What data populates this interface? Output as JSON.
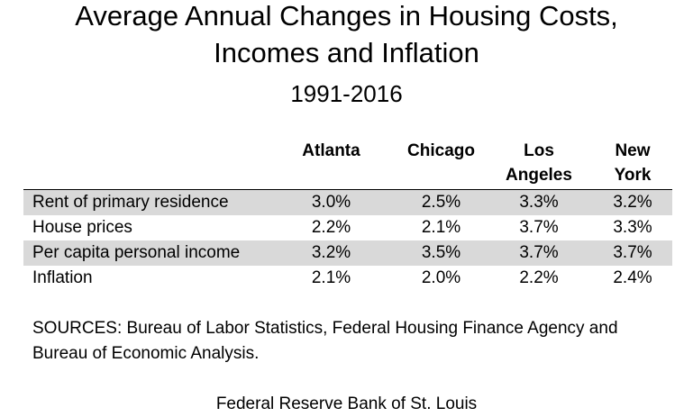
{
  "header": {
    "title_line1": "Average Annual Changes in Housing Costs,",
    "title_line2": "Incomes and Inflation",
    "subtitle": "1991-2016"
  },
  "chart_data": {
    "type": "table",
    "title": "Average Annual Changes in Housing Costs, Incomes and Inflation",
    "subtitle": "1991-2016",
    "columns": [
      "",
      "Atlanta",
      "Chicago",
      "Los Angeles",
      "New York"
    ],
    "column_header_lines": [
      [],
      [
        "Atlanta"
      ],
      [
        "Chicago"
      ],
      [
        "Los",
        "Angeles"
      ],
      [
        "New",
        "York"
      ]
    ],
    "rows": [
      {
        "label": "Rent of primary residence",
        "values": [
          "3.0%",
          "2.5%",
          "3.3%",
          "3.2%"
        ],
        "shaded": true
      },
      {
        "label": "House prices",
        "values": [
          "2.2%",
          "2.1%",
          "3.7%",
          "3.3%"
        ],
        "shaded": false
      },
      {
        "label": "Per capita personal income",
        "values": [
          "3.2%",
          "3.5%",
          "3.7%",
          "3.7%"
        ],
        "shaded": true
      },
      {
        "label": "Inflation",
        "values": [
          "2.1%",
          "2.0%",
          "2.2%",
          "2.4%"
        ],
        "shaded": false
      }
    ],
    "shade_color": "#d9d9d9"
  },
  "footer": {
    "sources": "SOURCES: Bureau of Labor Statistics, Federal Housing Finance Agency and Bureau of Economic Analysis.",
    "credit": "Federal Reserve Bank of St. Louis"
  }
}
